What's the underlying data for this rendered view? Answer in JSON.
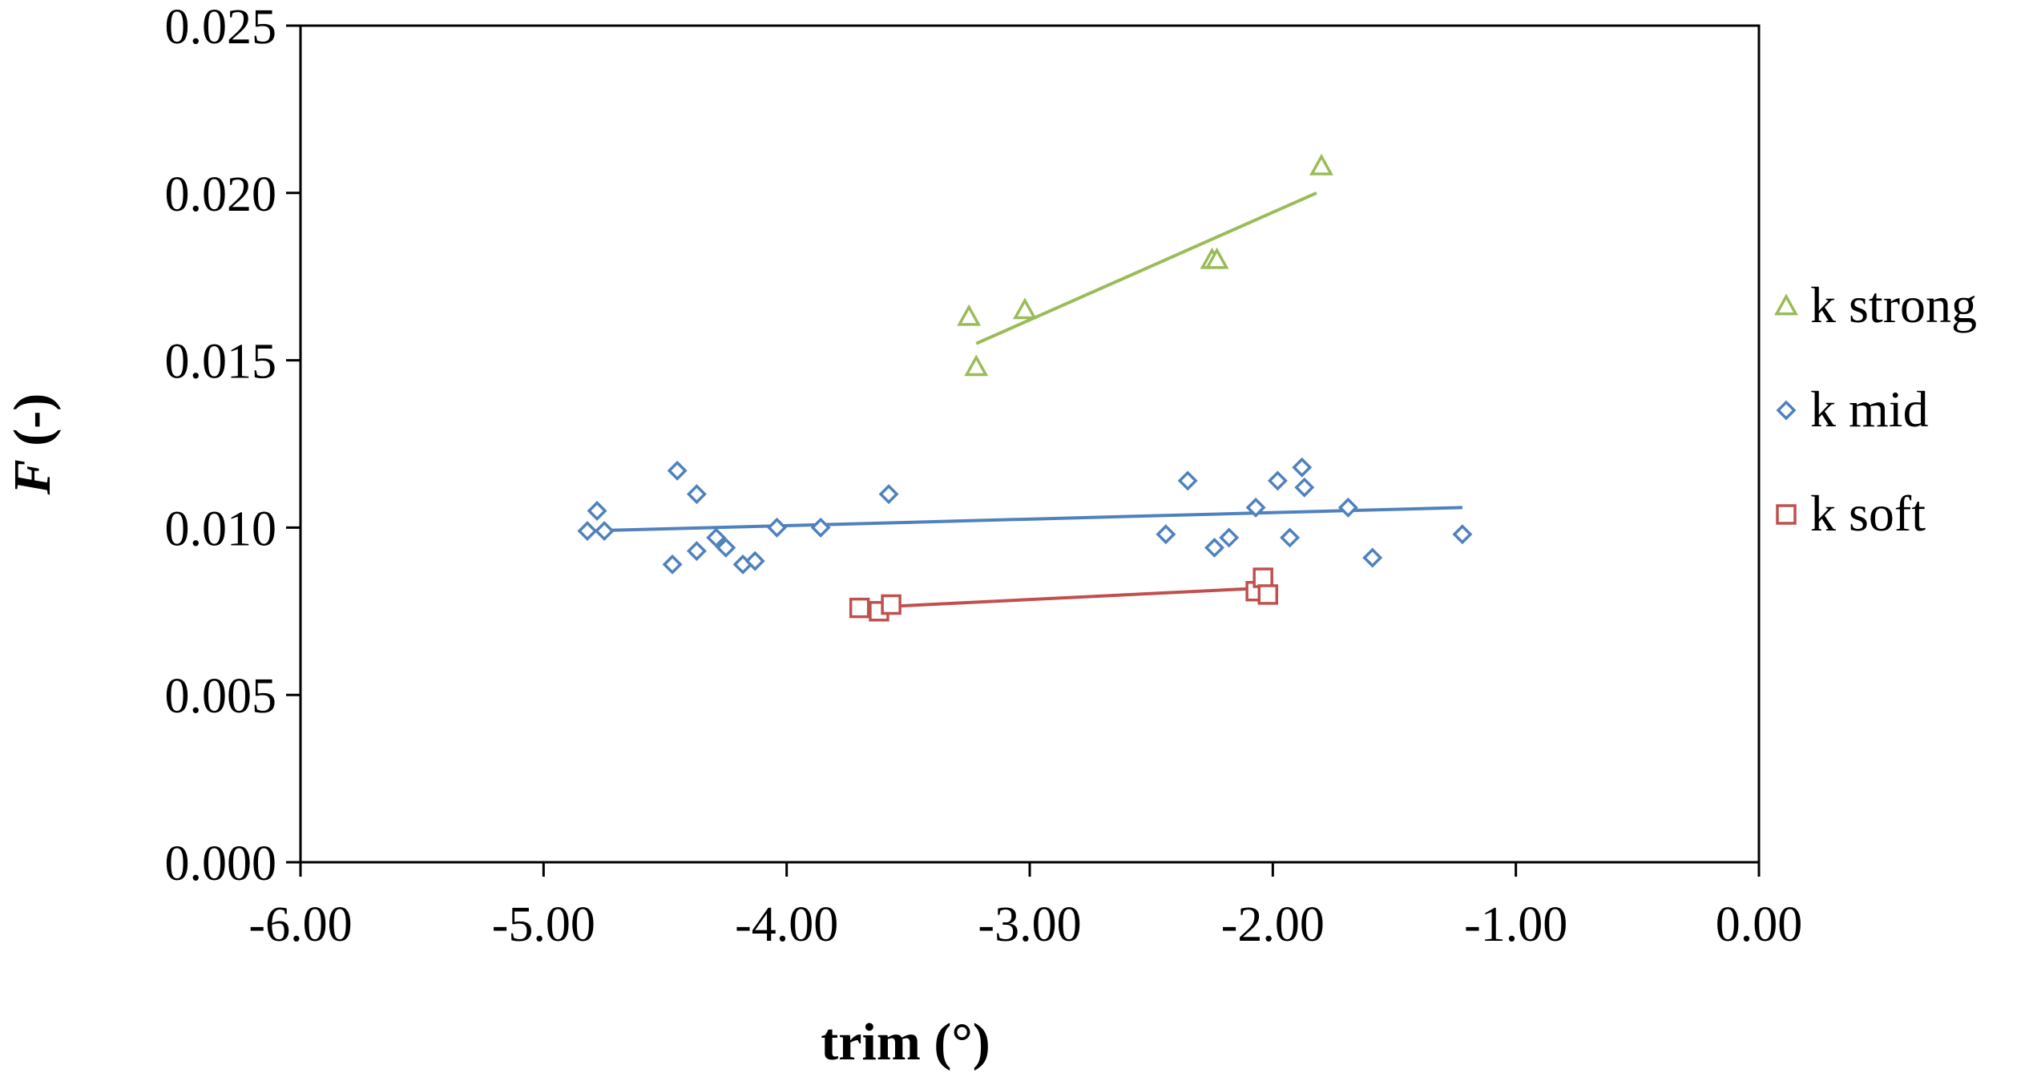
{
  "chart_data": {
    "type": "scatter",
    "title": "",
    "xlabel": "trim (°)",
    "ylabel_italic": "F",
    "ylabel_rest": " (-)",
    "xlim": [
      -6.0,
      0.0
    ],
    "ylim": [
      0.0,
      0.025
    ],
    "xticks": [
      -6.0,
      -5.0,
      -4.0,
      -3.0,
      -2.0,
      -1.0,
      0.0
    ],
    "xtick_labels": [
      "-6.00",
      "-5.00",
      "-4.00",
      "-3.00",
      "-2.00",
      "-1.00",
      "0.00"
    ],
    "yticks": [
      0.0,
      0.005,
      0.01,
      0.015,
      0.02,
      0.025
    ],
    "ytick_labels": [
      "0.000",
      "0.005",
      "0.010",
      "0.015",
      "0.020",
      "0.025"
    ],
    "grid": false,
    "legend_position": "right",
    "series": [
      {
        "name": "k strong",
        "marker": "triangle",
        "color": "#9BBB59",
        "points": [
          [
            -3.25,
            0.0163
          ],
          [
            -3.22,
            0.0148
          ],
          [
            -3.02,
            0.0165
          ],
          [
            -2.25,
            0.018
          ],
          [
            -2.23,
            0.018
          ],
          [
            -1.8,
            0.0208
          ]
        ],
        "trendline": [
          [
            -3.22,
            0.0155
          ],
          [
            -1.82,
            0.02
          ]
        ]
      },
      {
        "name": "k mid",
        "marker": "diamond",
        "color": "#4F81BD",
        "points": [
          [
            -4.82,
            0.0099
          ],
          [
            -4.78,
            0.0105
          ],
          [
            -4.75,
            0.0099
          ],
          [
            -4.47,
            0.0089
          ],
          [
            -4.45,
            0.0117
          ],
          [
            -4.37,
            0.011
          ],
          [
            -4.37,
            0.0093
          ],
          [
            -4.29,
            0.0097
          ],
          [
            -4.25,
            0.0094
          ],
          [
            -4.18,
            0.0089
          ],
          [
            -4.13,
            0.009
          ],
          [
            -4.04,
            0.01
          ],
          [
            -3.86,
            0.01
          ],
          [
            -3.58,
            0.011
          ],
          [
            -2.44,
            0.0098
          ],
          [
            -2.35,
            0.0114
          ],
          [
            -2.24,
            0.0094
          ],
          [
            -2.18,
            0.0097
          ],
          [
            -2.07,
            0.0106
          ],
          [
            -1.98,
            0.0114
          ],
          [
            -1.93,
            0.0097
          ],
          [
            -1.88,
            0.0118
          ],
          [
            -1.87,
            0.0112
          ],
          [
            -1.69,
            0.0106
          ],
          [
            -1.59,
            0.0091
          ],
          [
            -1.22,
            0.0098
          ]
        ],
        "trendline": [
          [
            -4.82,
            0.0099
          ],
          [
            -1.22,
            0.0106
          ]
        ]
      },
      {
        "name": "k soft",
        "marker": "square",
        "color": "#C0504D",
        "points": [
          [
            -3.7,
            0.0076
          ],
          [
            -3.62,
            0.0075
          ],
          [
            -3.57,
            0.0077
          ],
          [
            -2.07,
            0.0081
          ],
          [
            -2.04,
            0.0085
          ],
          [
            -2.02,
            0.008
          ]
        ],
        "trendline": [
          [
            -3.7,
            0.0076
          ],
          [
            -2.02,
            0.0082
          ]
        ]
      }
    ],
    "legend_order": [
      0,
      1,
      2
    ]
  }
}
